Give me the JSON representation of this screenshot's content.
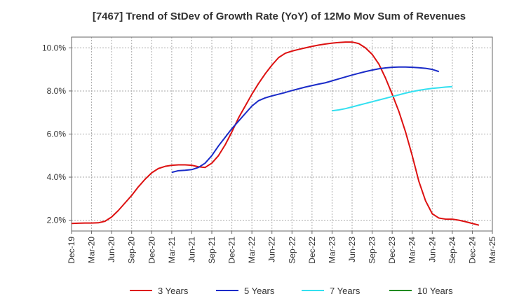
{
  "chart_data": {
    "type": "line",
    "title": "[7467]  Trend of StDev of Growth Rate (YoY) of 12Mo Mov Sum of Revenues",
    "xlabel": "",
    "ylabel": "",
    "ylim": [
      1.5,
      10.5
    ],
    "yticks": [
      2.0,
      4.0,
      6.0,
      8.0,
      10.0
    ],
    "ytick_labels": [
      "2.0%",
      "4.0%",
      "6.0%",
      "8.0%",
      "10.0%"
    ],
    "x_start": "Dec-19",
    "x_tick_labels": [
      "Dec-19",
      "Mar-20",
      "Jun-20",
      "Sep-20",
      "Dec-20",
      "Mar-21",
      "Jun-21",
      "Sep-21",
      "Dec-21",
      "Mar-22",
      "Jun-22",
      "Sep-22",
      "Dec-22",
      "Mar-23",
      "Jun-23",
      "Sep-23",
      "Dec-23",
      "Mar-24",
      "Jun-24",
      "Sep-24",
      "Dec-24",
      "Mar-25"
    ],
    "grid": true,
    "legend_position": "bottom",
    "series": [
      {
        "name": "3 Years",
        "color": "#dd1111",
        "start_index": 0,
        "values": [
          1.85,
          1.86,
          1.87,
          1.87,
          1.88,
          1.95,
          2.15,
          2.45,
          2.8,
          3.15,
          3.55,
          3.9,
          4.2,
          4.4,
          4.5,
          4.55,
          4.57,
          4.57,
          4.55,
          4.48,
          4.45,
          4.65,
          5.0,
          5.5,
          6.1,
          6.75,
          7.3,
          7.85,
          8.35,
          8.8,
          9.2,
          9.55,
          9.75,
          9.85,
          9.93,
          10.0,
          10.07,
          10.13,
          10.18,
          10.22,
          10.25,
          10.27,
          10.27,
          10.2,
          10.0,
          9.7,
          9.25,
          8.6,
          7.85,
          7.05,
          6.1,
          5.0,
          3.8,
          2.9,
          2.3,
          2.1,
          2.05,
          2.05,
          2.0,
          1.93,
          1.85,
          1.77
        ]
      },
      {
        "name": "5 Years",
        "color": "#1a2bc8",
        "start_index": 15,
        "values": [
          4.22,
          4.3,
          4.32,
          4.35,
          4.45,
          4.65,
          5.0,
          5.45,
          5.85,
          6.25,
          6.6,
          6.95,
          7.3,
          7.55,
          7.68,
          7.77,
          7.85,
          7.93,
          8.02,
          8.1,
          8.18,
          8.25,
          8.32,
          8.38,
          8.47,
          8.56,
          8.65,
          8.74,
          8.82,
          8.9,
          8.97,
          9.03,
          9.07,
          9.1,
          9.11,
          9.11,
          9.1,
          9.08,
          9.05,
          9.0,
          8.9
        ]
      },
      {
        "name": "7 Years",
        "color": "#33e0f0",
        "start_index": 39,
        "values": [
          7.08,
          7.12,
          7.18,
          7.26,
          7.34,
          7.42,
          7.5,
          7.58,
          7.66,
          7.74,
          7.82,
          7.9,
          7.97,
          8.03,
          8.08,
          8.12,
          8.15,
          8.18,
          8.2
        ]
      },
      {
        "name": "10 Years",
        "color": "#228b22",
        "start_index": 0,
        "values": []
      }
    ]
  }
}
